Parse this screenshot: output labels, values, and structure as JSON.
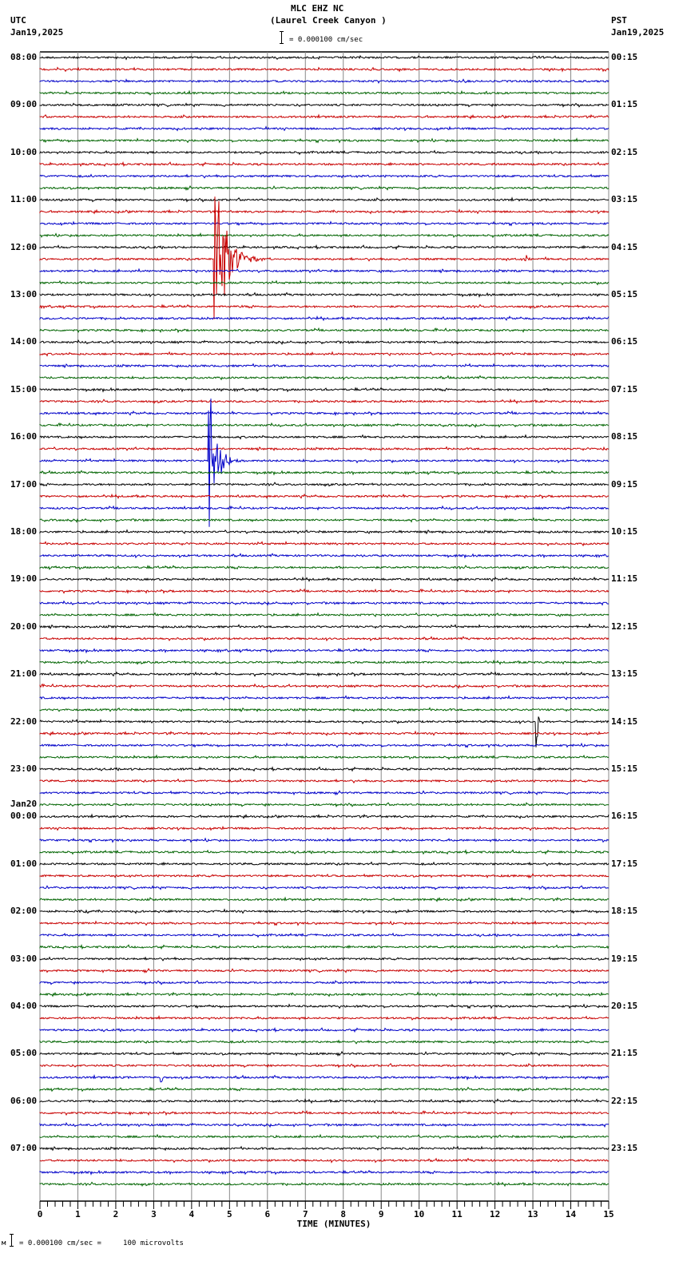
{
  "header": {
    "station": "MLC EHZ NC",
    "location": "(Laurel Creek Canyon )",
    "scale": "= 0.000100 cm/sec",
    "left_tz": "UTC",
    "left_date": "Jan19,2025",
    "right_tz": "PST",
    "right_date": "Jan19,2025"
  },
  "footer": {
    "prefix": "м",
    "scale": "= 0.000100 cm/sec =     100 microvolts"
  },
  "chart_data": {
    "type": "line",
    "title": "MLC EHZ NC (Laurel Creek Canyon )",
    "xlabel": "TIME (MINUTES)",
    "ylabel": "",
    "xlim": [
      0,
      15
    ],
    "x_ticks": [
      0,
      1,
      2,
      3,
      4,
      5,
      6,
      7,
      8,
      9,
      10,
      11,
      12,
      13,
      14,
      15
    ],
    "rows_per_hour": 4,
    "row_minutes": 15,
    "trace_colors": [
      "#000000",
      "#c80000",
      "#0000c8",
      "#006400"
    ],
    "grid": true,
    "left_labels": [
      {
        "row": 0,
        "text": "08:00"
      },
      {
        "row": 4,
        "text": "09:00"
      },
      {
        "row": 8,
        "text": "10:00"
      },
      {
        "row": 12,
        "text": "11:00"
      },
      {
        "row": 16,
        "text": "12:00"
      },
      {
        "row": 20,
        "text": "13:00"
      },
      {
        "row": 24,
        "text": "14:00"
      },
      {
        "row": 28,
        "text": "15:00"
      },
      {
        "row": 32,
        "text": "16:00"
      },
      {
        "row": 36,
        "text": "17:00"
      },
      {
        "row": 40,
        "text": "18:00"
      },
      {
        "row": 44,
        "text": "19:00"
      },
      {
        "row": 48,
        "text": "20:00"
      },
      {
        "row": 52,
        "text": "21:00"
      },
      {
        "row": 56,
        "text": "22:00"
      },
      {
        "row": 60,
        "text": "23:00"
      },
      {
        "row": 64,
        "text": "00:00",
        "date": "Jan20"
      },
      {
        "row": 68,
        "text": "01:00"
      },
      {
        "row": 72,
        "text": "02:00"
      },
      {
        "row": 76,
        "text": "03:00"
      },
      {
        "row": 80,
        "text": "04:00"
      },
      {
        "row": 84,
        "text": "05:00"
      },
      {
        "row": 88,
        "text": "06:00"
      },
      {
        "row": 92,
        "text": "07:00"
      }
    ],
    "right_labels": [
      "00:15",
      "01:15",
      "02:15",
      "03:15",
      "04:15",
      "05:15",
      "06:15",
      "07:15",
      "08:15",
      "09:15",
      "10:15",
      "11:15",
      "12:15",
      "13:15",
      "14:15",
      "15:15",
      "16:15",
      "17:15",
      "18:15",
      "19:15",
      "20:15",
      "21:15",
      "22:15",
      "23:15"
    ],
    "num_rows": 96,
    "events": [
      {
        "row": 17,
        "minute": 4.6,
        "amplitude": 125,
        "duration_min": 1.5,
        "label": "large local event (red trace, 12:15 UTC)"
      },
      {
        "row": 17,
        "minute": 12.8,
        "amplitude": 10,
        "duration_min": 0.2,
        "label": "small event"
      },
      {
        "row": 34,
        "minute": 4.45,
        "amplitude": 110,
        "duration_min": 1.0,
        "label": "large event (blue trace, 16:30 UTC)"
      },
      {
        "row": 33,
        "minute": 14.85,
        "amplitude": 8,
        "duration_min": 0.15,
        "label": "small event at row end"
      },
      {
        "row": 40,
        "minute": 9.5,
        "amplitude": 4,
        "duration_min": 0.1,
        "label": "spike"
      },
      {
        "row": 48,
        "minute": 14.5,
        "amplitude": 4,
        "duration_min": 0.1,
        "label": "spike"
      },
      {
        "row": 56,
        "minute": 13.1,
        "amplitude": 40,
        "duration_min": 0.2,
        "label": "sharp spike (black trace, 22:00 UTC)"
      },
      {
        "row": 72,
        "minute": 1.05,
        "amplitude": 6,
        "duration_min": 0.4,
        "label": "small event"
      },
      {
        "row": 86,
        "minute": 3.2,
        "amplitude": 14,
        "duration_min": 0.15,
        "label": "small event (blue trace, 05:30 UTC)"
      }
    ]
  }
}
